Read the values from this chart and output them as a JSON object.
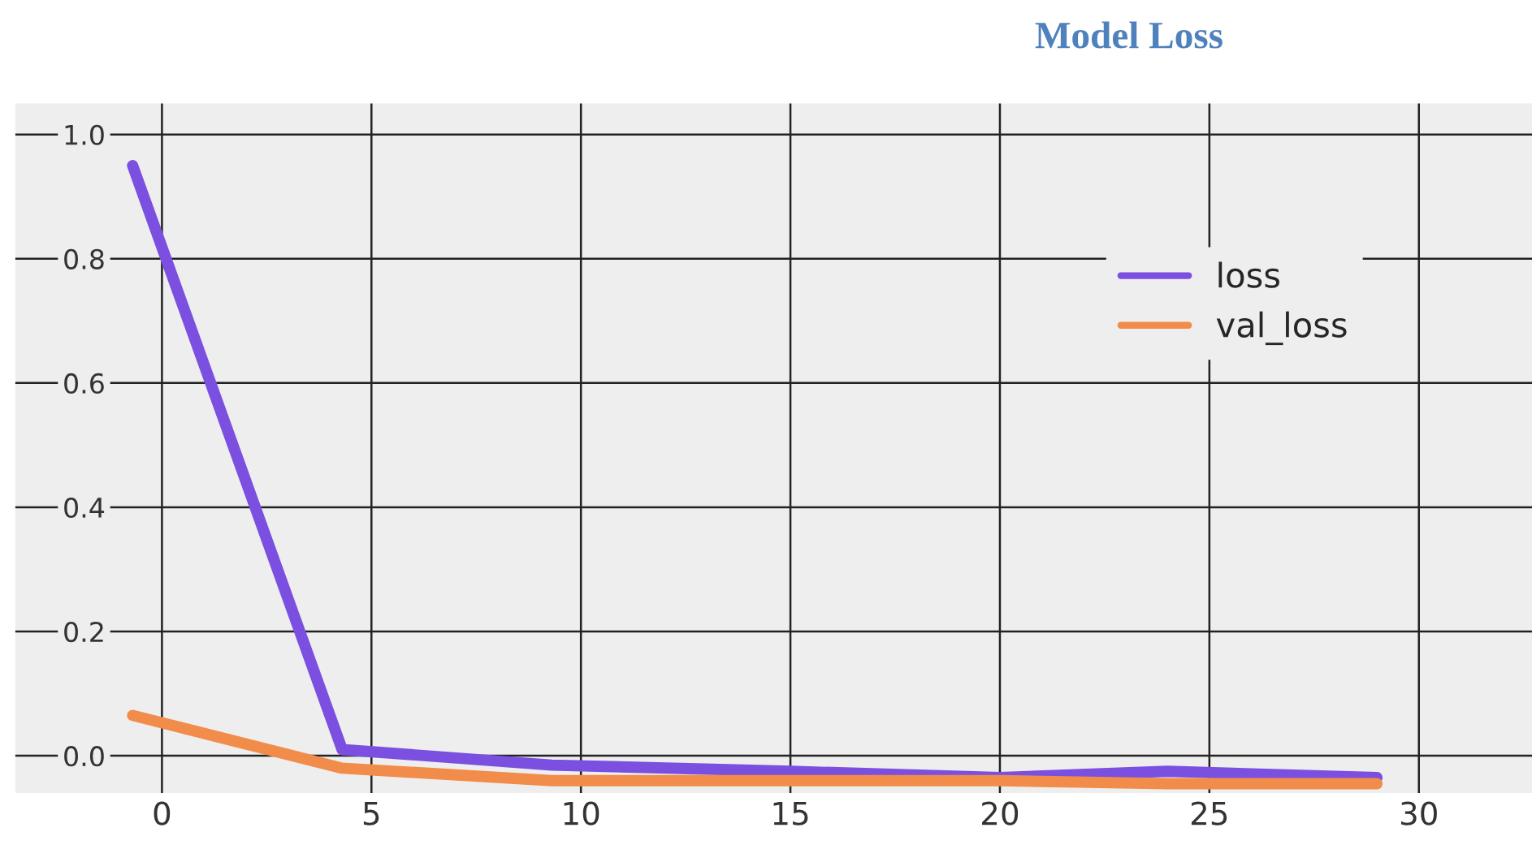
{
  "chart_data": {
    "type": "line",
    "title": "Model Loss",
    "xlim": [
      -3.5,
      32.7
    ],
    "xticks": [
      0,
      5,
      10,
      15,
      20,
      25,
      30
    ],
    "ylim": [
      -0.06,
      1.05
    ],
    "yticks": [
      {
        "value": 0,
        "label": "0.0"
      },
      0.2,
      0.4,
      0.6,
      0.8,
      {
        "value": 1,
        "label": "1.0"
      }
    ],
    "grid": true,
    "legend": "top right",
    "line_style": "solid",
    "marker": "none",
    "series": [
      {
        "name": "loss",
        "color": "#7b4fe0",
        "x": [
          -0.7,
          4.3,
          9.3,
          15,
          20,
          24,
          29
        ],
        "values": [
          0.95,
          0.01,
          -0.015,
          -0.025,
          -0.035,
          -0.025,
          -0.035
        ]
      },
      {
        "name": "val_loss",
        "color": "#f28c4a",
        "x": [
          -0.7,
          4.3,
          9.3,
          15,
          20,
          24,
          29
        ],
        "values": [
          0.065,
          -0.02,
          -0.04,
          -0.04,
          -0.04,
          -0.045,
          -0.045
        ]
      }
    ]
  }
}
